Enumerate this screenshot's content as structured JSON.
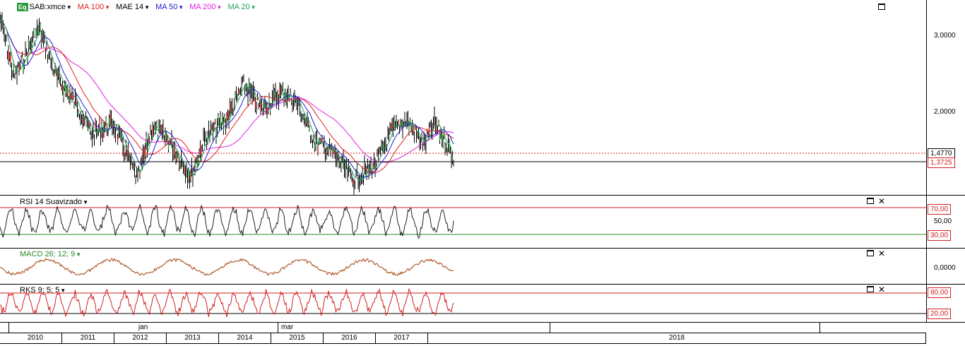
{
  "legend": {
    "symbol_badge": "Eq",
    "symbol": "SAB:xmce",
    "items": [
      {
        "label": "MA 100",
        "color": "#e02020"
      },
      {
        "label": "MAE 14",
        "color": "#000000"
      },
      {
        "label": "MA 50",
        "color": "#2020d0"
      },
      {
        "label": "MA 200",
        "color": "#e020e0"
      },
      {
        "label": "MA 20",
        "color": "#20a060"
      }
    ]
  },
  "price_axis": {
    "ticks": [
      "3,0000",
      "2,0000"
    ],
    "last_price": "1,4770",
    "reference_price": "1,3725"
  },
  "rsi": {
    "label": "RSI 14 Suavizado",
    "upper": "70,00",
    "mid": "50,00",
    "lower": "30,00"
  },
  "macd": {
    "label": "MACD 26; 12; 9",
    "zero": "0,0000"
  },
  "stoch": {
    "label": "RKS 9; 5; 5",
    "upper": "80,00",
    "lower": "20,00"
  },
  "timeline": {
    "months": [
      "jan",
      "mar"
    ],
    "years": [
      "2010",
      "2011",
      "2012",
      "2013",
      "2014",
      "2015",
      "2016",
      "2017",
      "2018"
    ]
  },
  "colors": {
    "price_line": "#000000",
    "rsi_line": "#222222",
    "macd_line": "#b05a2a",
    "stoch_line": "#d02020",
    "upper_band": "#d02020",
    "lower_band": "#2a8a2a"
  }
}
